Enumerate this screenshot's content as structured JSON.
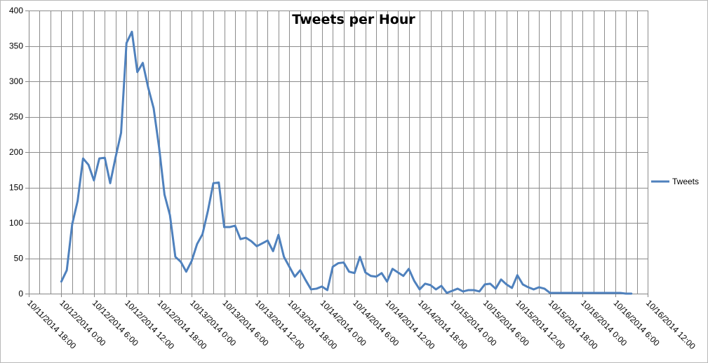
{
  "chart_data": {
    "type": "line",
    "title": "Tweets per Hour",
    "xlabel": "",
    "ylabel": "",
    "ylim": [
      0,
      400
    ],
    "y_ticks": [
      0,
      50,
      100,
      150,
      200,
      250,
      300,
      350,
      400
    ],
    "x_tick_labels": [
      "10/11/2014 18:00",
      "10/12/2014 0:00",
      "10/12/2014 6:00",
      "10/12/2014 12:00",
      "10/12/2014 18:00",
      "10/13/2014 0:00",
      "10/13/2014 6:00",
      "10/13/2014 12:00",
      "10/13/2014 18:00",
      "10/14/2014 0:00",
      "10/14/2014 6:00",
      "10/14/2014 12:00",
      "10/14/2014 18:00",
      "10/15/2014 0:00",
      "10/15/2014 6:00",
      "10/15/2014 12:00",
      "10/15/2014 18:00",
      "10/16/2014 0:00",
      "10/16/2014 6:00",
      "10/16/2014 12:00"
    ],
    "x_range": [
      "10/11/2014 18:00",
      "10/16/2014 12:00"
    ],
    "x_unit": "hour",
    "grid": true,
    "legend_position": "right",
    "series": [
      {
        "name": "Tweets",
        "color": "#4f81bd",
        "start": "10/12/2014 0:00",
        "values": [
          17,
          33,
          98,
          131,
          191,
          182,
          160,
          191,
          192,
          156,
          193,
          227,
          354,
          370,
          313,
          326,
          291,
          262,
          207,
          140,
          111,
          52,
          45,
          31,
          46,
          70,
          84,
          117,
          156,
          157,
          94,
          94,
          96,
          77,
          79,
          74,
          67,
          71,
          75,
          60,
          83,
          52,
          38,
          24,
          33,
          19,
          6,
          7,
          10,
          5,
          38,
          43,
          44,
          31,
          29,
          52,
          30,
          25,
          24,
          29,
          17,
          35,
          30,
          25,
          35,
          18,
          6,
          14,
          12,
          6,
          11,
          1,
          4,
          7,
          3,
          5,
          5,
          3,
          13,
          14,
          7,
          20,
          13,
          8,
          26,
          13,
          9,
          6,
          9,
          7,
          1,
          1,
          1,
          1,
          1,
          1,
          1,
          1,
          1,
          1,
          1,
          1,
          1,
          1,
          0,
          0
        ]
      }
    ]
  }
}
